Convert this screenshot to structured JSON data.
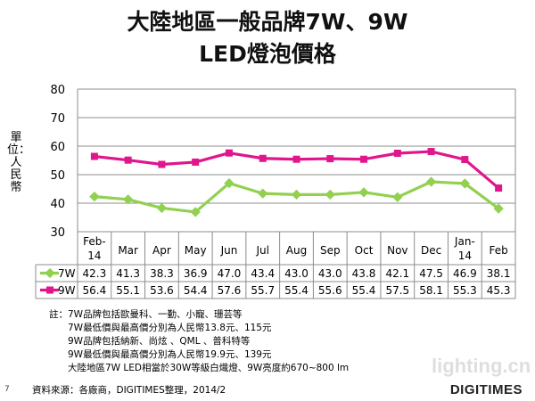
{
  "title_line1": "大陸地區一般品牌7W、9W",
  "title_line2": "LED燈泡價格",
  "chart_data": {
    "type": "line",
    "categories": [
      "Feb-14",
      "Mar",
      "Apr",
      "May",
      "Jun",
      "Jul",
      "Aug",
      "Sep",
      "Oct",
      "Nov",
      "Dec",
      "Jan-14",
      "Feb"
    ],
    "series": [
      {
        "name": "7W",
        "values": [
          42.3,
          41.3,
          38.3,
          36.9,
          47.0,
          43.4,
          43.0,
          43.0,
          43.8,
          42.1,
          47.5,
          46.9,
          38.1
        ],
        "color": "#92D050"
      },
      {
        "name": "9W",
        "values": [
          56.4,
          55.1,
          53.6,
          54.4,
          57.6,
          55.7,
          55.4,
          55.6,
          55.4,
          57.5,
          58.1,
          55.3,
          45.3
        ],
        "color": "#E0168C"
      }
    ],
    "ylim": [
      30,
      80
    ],
    "yticks": [
      30,
      40,
      50,
      60,
      70,
      80
    ],
    "ylabel": "單位：人民幣",
    "grid": true,
    "legend": "data-table"
  },
  "notes": {
    "prefix": "註：",
    "lines": [
      "7W品牌包括歐曼科、一勤、小寵、珊芸等",
      "7W最低價與最高價分別為人民幣13.8元、115元",
      "9W品牌包括納新、尚炫 、QML 、普科特等",
      "9W最低價與最高價分別為人民幣19.9元、139元",
      "大陸地區7W LED相當於30W等級白熾燈、9W亮度約670~800 lm"
    ]
  },
  "source": "資料來源：各廠商，DIGITIMES整理，2014/2",
  "page_number": "7",
  "brand": "DIGITIMES",
  "watermark": "lighting.cn"
}
